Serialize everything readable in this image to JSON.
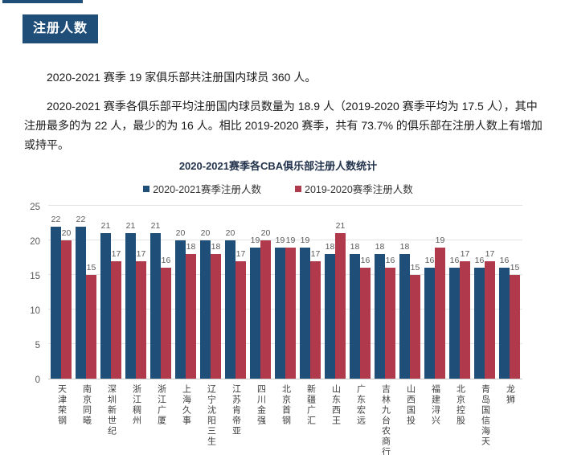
{
  "page": {
    "section_badge": "注册人数",
    "paragraphs": [
      "2020-2021 赛季 19 家俱乐部共注册国内球员 360 人。",
      "2020-2021 赛季各俱乐部平均注册国内球员数量为 18.9 人（2019-2020 赛季平均为 17.5 人），其中注册最多的为 22 人，最少的为 16 人。相比 2019-2020 赛季，共有 73.7% 的俱乐部在注册人数上有增加或持平。"
    ]
  },
  "chart_data": {
    "type": "bar",
    "title": "2020-2021赛季各CBA俱乐部注册人数统计",
    "categories": [
      "天津荣钢",
      "南京同曦",
      "深圳新世纪",
      "浙江稠州",
      "浙江广厦",
      "上海久事",
      "辽宁沈阳三生",
      "江苏肯帝亚",
      "四川金强",
      "北京首钢",
      "新疆广汇",
      "山东西王",
      "广东宏远",
      "吉林九台农商行",
      "山西国投",
      "福建浔兴",
      "北京控股",
      "青岛国信海天",
      "龙狮"
    ],
    "series": [
      {
        "name": "2020-2021赛季注册人数",
        "color": "#1f4e79",
        "values": [
          22,
          22,
          21,
          21,
          21,
          20,
          20,
          20,
          19,
          19,
          19,
          18,
          18,
          18,
          18,
          16,
          16,
          16,
          16
        ]
      },
      {
        "name": "2019-2020赛季注册人数",
        "color": "#b03a4b",
        "values": [
          20,
          15,
          17,
          17,
          16,
          18,
          18,
          17,
          20,
          19,
          17,
          21,
          16,
          16,
          15,
          19,
          17,
          17,
          15
        ]
      }
    ],
    "ylim": [
      0,
      25
    ],
    "yticks": [
      0,
      5,
      10,
      15,
      20,
      25
    ],
    "grid": true,
    "legend_position": "top",
    "data_labels": true,
    "xlabel": "",
    "ylabel": ""
  }
}
